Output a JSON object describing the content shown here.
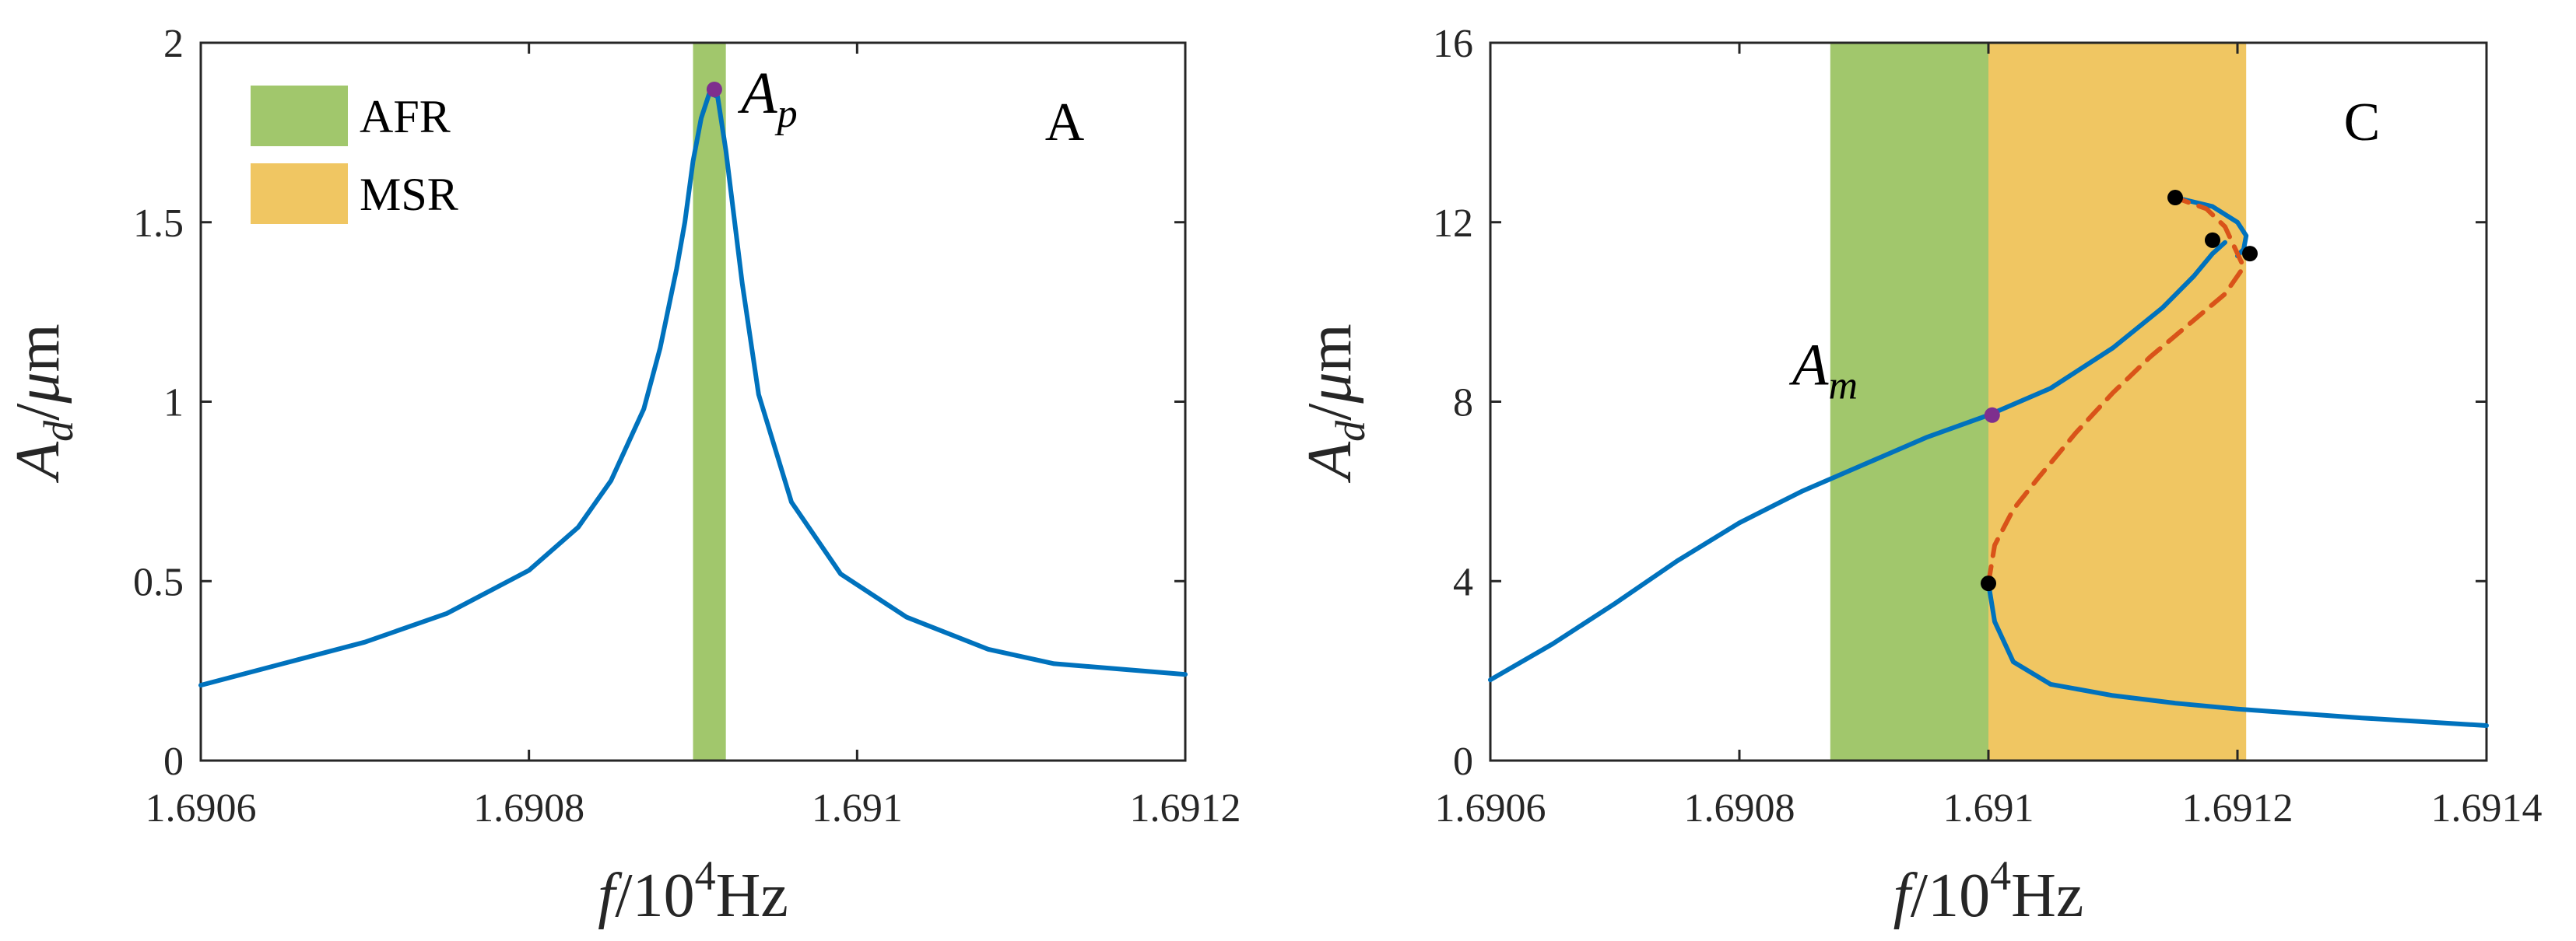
{
  "colors": {
    "afr": "#A1C76C",
    "msr": "#F0C662",
    "stable": "#0072BD",
    "unstable": "#D95319",
    "marker": "#000000",
    "special": "#7E2F8E",
    "axes": "#262626"
  },
  "legend": {
    "items": [
      {
        "label": "AFR",
        "color": "#A1C76C"
      },
      {
        "label": "MSR",
        "color": "#F0C662"
      }
    ],
    "placement": "top-left of panel A"
  },
  "chart_data": [
    {
      "type": "line",
      "panel_label": "A",
      "xlabel": {
        "italic": "f",
        "rest": "/10",
        "sup": "4",
        "unit": "Hz"
      },
      "ylabel": {
        "main": "A",
        "sub": "d",
        "rest": "/",
        "greek": "μ",
        "unit": "m"
      },
      "xlim": [
        1.6906,
        1.6912
      ],
      "ylim": [
        0,
        2
      ],
      "xticks": [
        1.6906,
        1.6908,
        1.691,
        1.6912
      ],
      "xtick_labels": [
        "1.6906",
        "1.6908",
        "1.691",
        "1.6912"
      ],
      "yticks": [
        0,
        0.5,
        1,
        1.5,
        2
      ],
      "ytick_labels": [
        "0",
        "0.5",
        "1",
        "1.5",
        "2"
      ],
      "grid": false,
      "shaded_regions": [
        {
          "name": "AFR",
          "x": [
            1.6909,
            1.69092
          ]
        }
      ],
      "series": [
        {
          "style": "stable",
          "x": [
            1.6906,
            1.69065,
            1.6907,
            1.69075,
            1.6908,
            1.69083,
            1.69085,
            1.69087,
            1.69088,
            1.69089,
            1.690895,
            1.6909,
            1.690905,
            1.69091,
            1.690915,
            1.69092,
            1.69093,
            1.69094,
            1.69096,
            1.69099,
            1.69103,
            1.69108,
            1.69112,
            1.6912
          ],
          "y": [
            0.21,
            0.27,
            0.33,
            0.41,
            0.53,
            0.65,
            0.78,
            0.98,
            1.15,
            1.37,
            1.5,
            1.67,
            1.79,
            1.86,
            1.85,
            1.7,
            1.33,
            1.02,
            0.72,
            0.52,
            0.4,
            0.31,
            0.27,
            0.24
          ]
        }
      ],
      "points": [
        {
          "name": "A_p",
          "x": 1.690913,
          "y": 1.87,
          "color": "#7E2F8E"
        }
      ],
      "annotations": [
        {
          "main": "A",
          "sub": "p",
          "x": 1.690915,
          "y": 1.87
        }
      ]
    },
    {
      "type": "line",
      "panel_label": "C",
      "xlabel": {
        "italic": "f",
        "rest": "/10",
        "sup": "4",
        "unit": "Hz"
      },
      "ylabel": {
        "main": "A",
        "sub": "d",
        "rest": "/",
        "greek": "μ",
        "unit": "m"
      },
      "xlim": [
        1.6906,
        1.6914
      ],
      "ylim": [
        0,
        16
      ],
      "xticks": [
        1.6906,
        1.6908,
        1.691,
        1.6912,
        1.6914
      ],
      "xtick_labels": [
        "1.6906",
        "1.6908",
        "1.691",
        "1.6912",
        "1.6914"
      ],
      "yticks": [
        0,
        4,
        8,
        12,
        16
      ],
      "ytick_labels": [
        "0",
        "4",
        "8",
        "12",
        "16"
      ],
      "grid": false,
      "shaded_regions": [
        {
          "name": "AFR",
          "x": [
            1.690873,
            1.691
          ]
        },
        {
          "name": "MSR",
          "x": [
            1.691,
            1.691207
          ]
        }
      ],
      "series": [
        {
          "style": "stable",
          "x": [
            1.6906,
            1.69065,
            1.6907,
            1.69075,
            1.6908,
            1.69085,
            1.6909,
            1.69095,
            1.691,
            1.69105,
            1.6911,
            1.69114,
            1.691165,
            1.69118,
            1.69119
          ],
          "y": [
            1.8,
            2.6,
            3.5,
            4.45,
            5.3,
            6.0,
            6.6,
            7.2,
            7.7,
            8.3,
            9.2,
            10.1,
            10.8,
            11.3,
            11.55
          ]
        },
        {
          "style": "stable",
          "x": [
            1.69115,
            1.69118,
            1.6912,
            1.691207,
            1.691205,
            1.6912
          ],
          "y": [
            12.55,
            12.35,
            12.0,
            11.7,
            11.4,
            11.25
          ]
        },
        {
          "style": "stable",
          "x": [
            1.691,
            1.691005,
            1.69102,
            1.69105,
            1.6911,
            1.69115,
            1.6912,
            1.6913,
            1.6914
          ],
          "y": [
            3.95,
            3.1,
            2.2,
            1.7,
            1.45,
            1.28,
            1.15,
            0.95,
            0.78
          ]
        },
        {
          "style": "unstable",
          "x": [
            1.691,
            1.691005,
            1.69102,
            1.69104,
            1.69107,
            1.6911,
            1.69113,
            1.69116,
            1.69119,
            1.691205,
            1.6912,
            1.69119,
            1.691175,
            1.69115
          ],
          "y": [
            3.95,
            4.8,
            5.6,
            6.3,
            7.3,
            8.2,
            9.0,
            9.7,
            10.4,
            11.0,
            11.3,
            11.9,
            12.3,
            12.55
          ]
        }
      ],
      "points": [
        {
          "name": "A_m",
          "x": 1.691003,
          "y": 7.7,
          "color": "#7E2F8E"
        },
        {
          "name": "bifurcation-1",
          "x": 1.69115,
          "y": 12.55,
          "color": "#000000"
        },
        {
          "name": "bifurcation-2",
          "x": 1.69118,
          "y": 11.6,
          "color": "#000000"
        },
        {
          "name": "bifurcation-3",
          "x": 1.69121,
          "y": 11.3,
          "color": "#000000"
        },
        {
          "name": "bifurcation-4",
          "x": 1.691,
          "y": 3.95,
          "color": "#000000"
        }
      ],
      "annotations": [
        {
          "main": "A",
          "sub": "m",
          "x": 1.69088,
          "y": 8.0
        }
      ]
    }
  ]
}
